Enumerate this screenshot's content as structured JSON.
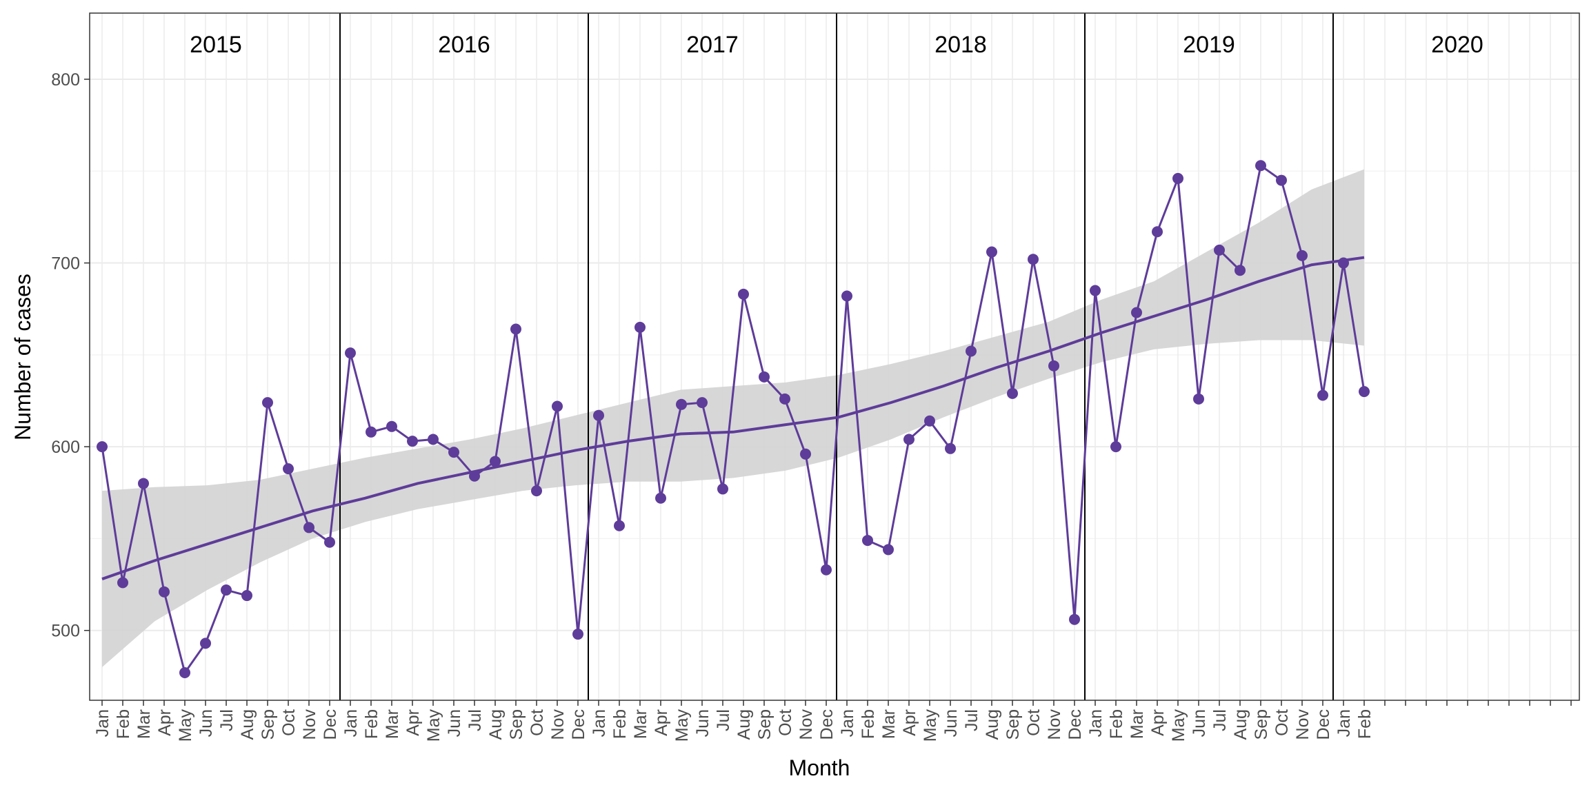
{
  "chart_data": {
    "type": "line",
    "xlabel": "Month",
    "ylabel": "Number of cases",
    "ylim": [
      462,
      836
    ],
    "y_ticks": [
      500,
      600,
      700,
      800
    ],
    "grid": true,
    "legend": "none",
    "colors": {
      "series": "#5e3c99",
      "band": "#d3d3d3",
      "grid": "#ebebeb",
      "divider": "#000000",
      "axis_text": "#4d4d4d"
    },
    "years": [
      {
        "label": "2015",
        "months": [
          "Jan",
          "Feb",
          "Mar",
          "Apr",
          "May",
          "Jun",
          "Jul",
          "Aug",
          "Sep",
          "Oct",
          "Nov",
          "Dec"
        ]
      },
      {
        "label": "2016",
        "months": [
          "Jan",
          "Feb",
          "Mar",
          "Apr",
          "May",
          "Jun",
          "Jul",
          "Aug",
          "Sep",
          "Oct",
          "Nov",
          "Dec"
        ]
      },
      {
        "label": "2017",
        "months": [
          "Jan",
          "Feb",
          "Mar",
          "Apr",
          "May",
          "Jun",
          "Jul",
          "Aug",
          "Sep",
          "Oct",
          "Nov",
          "Dec"
        ]
      },
      {
        "label": "2018",
        "months": [
          "Jan",
          "Feb",
          "Mar",
          "Apr",
          "May",
          "Jun",
          "Jul",
          "Aug",
          "Sep",
          "Oct",
          "Nov",
          "Dec"
        ]
      },
      {
        "label": "2019",
        "months": [
          "Jan",
          "Feb",
          "Mar",
          "Apr",
          "May",
          "Jun",
          "Jul",
          "Aug",
          "Sep",
          "Oct",
          "Nov",
          "Dec"
        ]
      },
      {
        "label": "2020",
        "months": [
          "Jan",
          "Feb",
          "",
          "",
          "",
          "",
          "",
          "",
          "",
          "",
          "",
          ""
        ]
      }
    ],
    "series": [
      {
        "values": [
          600,
          526,
          580,
          521,
          477,
          493,
          522,
          519,
          624,
          588,
          556,
          548,
          651,
          608,
          611,
          603,
          604,
          597,
          584,
          592,
          664,
          576,
          622,
          498,
          617,
          557,
          665,
          572,
          623,
          624,
          577,
          683,
          638,
          626,
          596,
          533,
          682,
          549,
          544,
          604,
          614,
          599,
          652,
          706,
          629,
          702,
          644,
          506,
          685,
          600,
          673,
          717,
          746,
          626,
          707,
          696,
          753,
          745,
          704,
          628,
          700,
          630
        ]
      }
    ],
    "trend": {
      "fit": [
        528,
        538,
        547,
        556,
        565,
        572,
        580,
        586,
        592,
        598,
        603,
        607,
        608,
        612,
        616,
        624,
        633,
        643,
        652,
        662,
        671,
        680,
        690,
        699,
        703
      ],
      "lower": [
        480,
        505,
        522,
        537,
        550,
        559,
        566,
        571,
        576,
        579,
        581,
        581,
        583,
        587,
        594,
        604,
        616,
        627,
        637,
        646,
        653,
        656,
        658,
        658,
        655
      ],
      "upper": [
        576,
        578,
        579,
        582,
        588,
        594,
        599,
        604,
        610,
        617,
        624,
        631,
        633,
        635,
        639,
        645,
        652,
        660,
        668,
        680,
        690,
        706,
        722,
        740,
        751
      ]
    }
  }
}
